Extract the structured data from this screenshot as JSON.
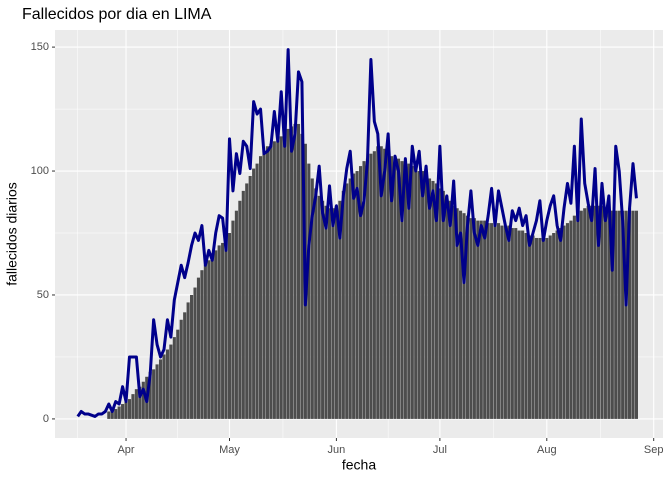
{
  "chart_data": {
    "type": "combo",
    "title": "Fallecidos por dia en LIMA",
    "x_label": "fecha",
    "y_label": "fallecidos diarios",
    "x": [
      17,
      18,
      19,
      20,
      21,
      22,
      23,
      24,
      25,
      26,
      27,
      28,
      29,
      30,
      31,
      32,
      33,
      34,
      35,
      36,
      37,
      38,
      39,
      40,
      41,
      42,
      43,
      44,
      45,
      46,
      47,
      48,
      49,
      50,
      51,
      52,
      53,
      54,
      55,
      56,
      57,
      58,
      59,
      60,
      61,
      62,
      63,
      64,
      65,
      66,
      67,
      68,
      69,
      70,
      71,
      72,
      73,
      74,
      75,
      76,
      77,
      78,
      79,
      80,
      81,
      82,
      83,
      84,
      85,
      86,
      87,
      88,
      89,
      90,
      91,
      92,
      93,
      94,
      95,
      96,
      97,
      98,
      99,
      100,
      101,
      102,
      103,
      104,
      105,
      106,
      107,
      108,
      109,
      110,
      111,
      112,
      113,
      114,
      115,
      116,
      117,
      118,
      119,
      120,
      121,
      122,
      123,
      124,
      125,
      126,
      127,
      128,
      129,
      130,
      131,
      132,
      133,
      134,
      135,
      136,
      137,
      138,
      139,
      140,
      141,
      142,
      143,
      144,
      145,
      146,
      147,
      148,
      149,
      150,
      151,
      152,
      153,
      154,
      155,
      156,
      157,
      158,
      159,
      160,
      161,
      162,
      163,
      164,
      165,
      166,
      167,
      168,
      169,
      170,
      171,
      172,
      173,
      174,
      175,
      176,
      177,
      178,
      179
    ],
    "series": [
      {
        "type": "bar",
        "color": "#4d4d4d",
        "values": [
          null,
          null,
          null,
          null,
          null,
          null,
          null,
          null,
          null,
          3,
          3,
          4,
          5,
          6,
          7,
          8,
          10,
          12,
          13,
          15,
          17,
          19,
          20,
          22,
          24,
          26,
          28,
          30,
          33,
          36,
          40,
          43,
          47,
          50,
          53,
          57,
          60,
          62,
          64,
          66,
          68,
          70,
          71,
          73,
          75,
          80,
          84,
          88,
          92,
          95,
          98,
          101,
          103,
          106,
          108,
          110,
          111,
          112,
          112,
          114,
          116,
          117,
          118,
          119,
          119,
          115,
          111,
          103,
          97,
          93,
          90,
          88,
          86,
          85,
          85,
          86,
          88,
          92,
          95,
          97,
          99,
          100,
          102,
          104,
          105,
          107,
          108,
          110,
          110,
          109,
          107,
          106,
          106,
          105,
          104,
          104,
          103,
          102,
          101,
          100,
          100,
          99,
          97,
          96,
          95,
          93,
          92,
          90,
          88,
          86,
          85,
          84,
          83,
          82,
          81,
          81,
          80,
          80,
          80,
          79,
          79,
          79,
          79,
          78,
          78,
          78,
          77,
          77,
          76,
          76,
          75,
          74,
          74,
          73,
          73,
          73,
          73,
          74,
          75,
          76,
          77,
          78,
          79,
          80,
          82,
          83,
          84,
          85,
          86,
          86,
          86,
          86,
          86,
          85,
          85,
          84,
          84,
          84,
          84,
          84,
          85,
          84,
          84
        ]
      },
      {
        "type": "line",
        "color": "#00008b",
        "values": [
          1,
          3,
          2,
          2,
          1.5,
          1,
          2,
          2,
          3,
          6,
          3,
          7,
          6,
          13,
          7,
          25,
          25,
          25,
          9,
          12,
          7,
          18,
          40,
          30,
          25,
          28,
          40,
          33,
          48,
          55,
          62,
          57,
          63,
          70,
          75,
          72,
          78,
          62,
          68,
          64,
          75,
          82,
          81,
          68,
          113,
          92,
          107,
          99,
          112,
          110,
          101,
          128,
          123,
          125,
          107,
          108,
          110,
          124,
          112,
          132,
          110,
          149,
          108,
          115,
          140,
          136,
          46,
          70,
          82,
          90,
          102,
          83,
          77,
          94,
          78,
          86,
          73,
          90,
          101,
          108,
          89,
          93,
          82,
          88,
          104,
          145,
          120,
          115,
          90,
          100,
          115,
          88,
          106,
          100,
          80,
          105,
          85,
          110,
          100,
          108,
          90,
          102,
          85,
          92,
          80,
          110,
          80,
          90,
          78,
          96,
          70,
          75,
          55,
          78,
          92,
          75,
          70,
          78,
          73,
          82,
          93,
          78,
          92,
          85,
          78,
          72,
          84,
          80,
          85,
          78,
          82,
          70,
          75,
          80,
          88,
          72,
          80,
          86,
          90,
          78,
          72,
          85,
          95,
          87,
          110,
          80,
          121,
          95,
          87,
          80,
          101,
          70,
          95,
          80,
          90,
          60,
          110,
          100,
          80,
          46,
          85,
          103,
          89
        ]
      }
    ],
    "xlim": [
      10.4,
      186.7
    ],
    "xticks": [
      {
        "value": 31,
        "label": "Apr"
      },
      {
        "value": 61,
        "label": "May"
      },
      {
        "value": 92,
        "label": "Jun"
      },
      {
        "value": 122,
        "label": "Jul"
      },
      {
        "value": 153,
        "label": "Aug"
      },
      {
        "value": 184,
        "label": "Sep"
      }
    ],
    "minor_xticks": [
      17,
      46,
      76.5,
      107,
      137.5,
      168.5
    ],
    "ylim": [
      -7.7,
      156.9
    ],
    "yticks": [
      0,
      50,
      100,
      150
    ],
    "minor_yticks": [
      25,
      75,
      125
    ],
    "grid": true,
    "panel_color": "#ebebeb"
  }
}
